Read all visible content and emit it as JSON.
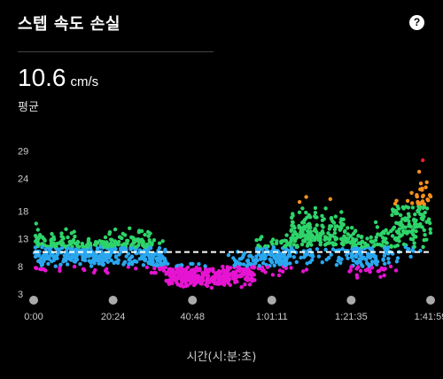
{
  "header": {
    "title": "스텝 속도 손실",
    "help_icon": "question-circle-icon"
  },
  "summary": {
    "value": "10.6",
    "unit": "cm/s",
    "caption": "평균"
  },
  "chart_data": {
    "type": "scatter",
    "title": "",
    "xlabel": "시간(시:분:초)",
    "ylabel": "",
    "x_tick_labels": [
      "0:00",
      "20:24",
      "40:48",
      "1:01:11",
      "1:21:35",
      "1:41:59"
    ],
    "x_tick_minutes": [
      0,
      20.4,
      40.8,
      61.18,
      81.58,
      101.98
    ],
    "y_ticks": [
      3,
      8,
      13,
      18,
      24,
      29
    ],
    "ylim": [
      2,
      31
    ],
    "xlim": [
      0,
      101.98
    ],
    "grid": false,
    "average_line": 10.6,
    "colors": {
      "very_low": "#e614d2",
      "low": "#2aa7ef",
      "mid": "#2ed46a",
      "high": "#f5901e",
      "very_high": "#e8202a",
      "average": "#ffffff"
    },
    "color_thresholds": [
      8,
      11.5,
      19,
      26
    ],
    "segments": [
      {
        "x_range": [
          0,
          2
        ],
        "center": 11.0,
        "spread": 3.0
      },
      {
        "x_range": [
          2,
          20
        ],
        "center": 10.7,
        "spread": 2.2
      },
      {
        "x_range": [
          20,
          30
        ],
        "center": 11.2,
        "spread": 2.4
      },
      {
        "x_range": [
          30,
          34
        ],
        "center": 9.0,
        "spread": 2.2
      },
      {
        "x_range": [
          34,
          50
        ],
        "center": 6.2,
        "spread": 1.3
      },
      {
        "x_range": [
          50,
          57
        ],
        "center": 7.5,
        "spread": 2.0
      },
      {
        "x_range": [
          57,
          65
        ],
        "center": 10.0,
        "spread": 2.5
      },
      {
        "x_range": [
          65,
          66
        ],
        "center": 10.5,
        "spread": 2.0
      },
      {
        "x_range": [
          66,
          80
        ],
        "center": 13.5,
        "spread": 3.5
      },
      {
        "x_range": [
          80,
          92
        ],
        "center": 11.0,
        "spread": 3.0
      },
      {
        "x_range": [
          92,
          98
        ],
        "center": 14.5,
        "spread": 4.0
      },
      {
        "x_range": [
          98,
          101.98
        ],
        "center": 17.5,
        "spread": 5.0
      }
    ]
  }
}
